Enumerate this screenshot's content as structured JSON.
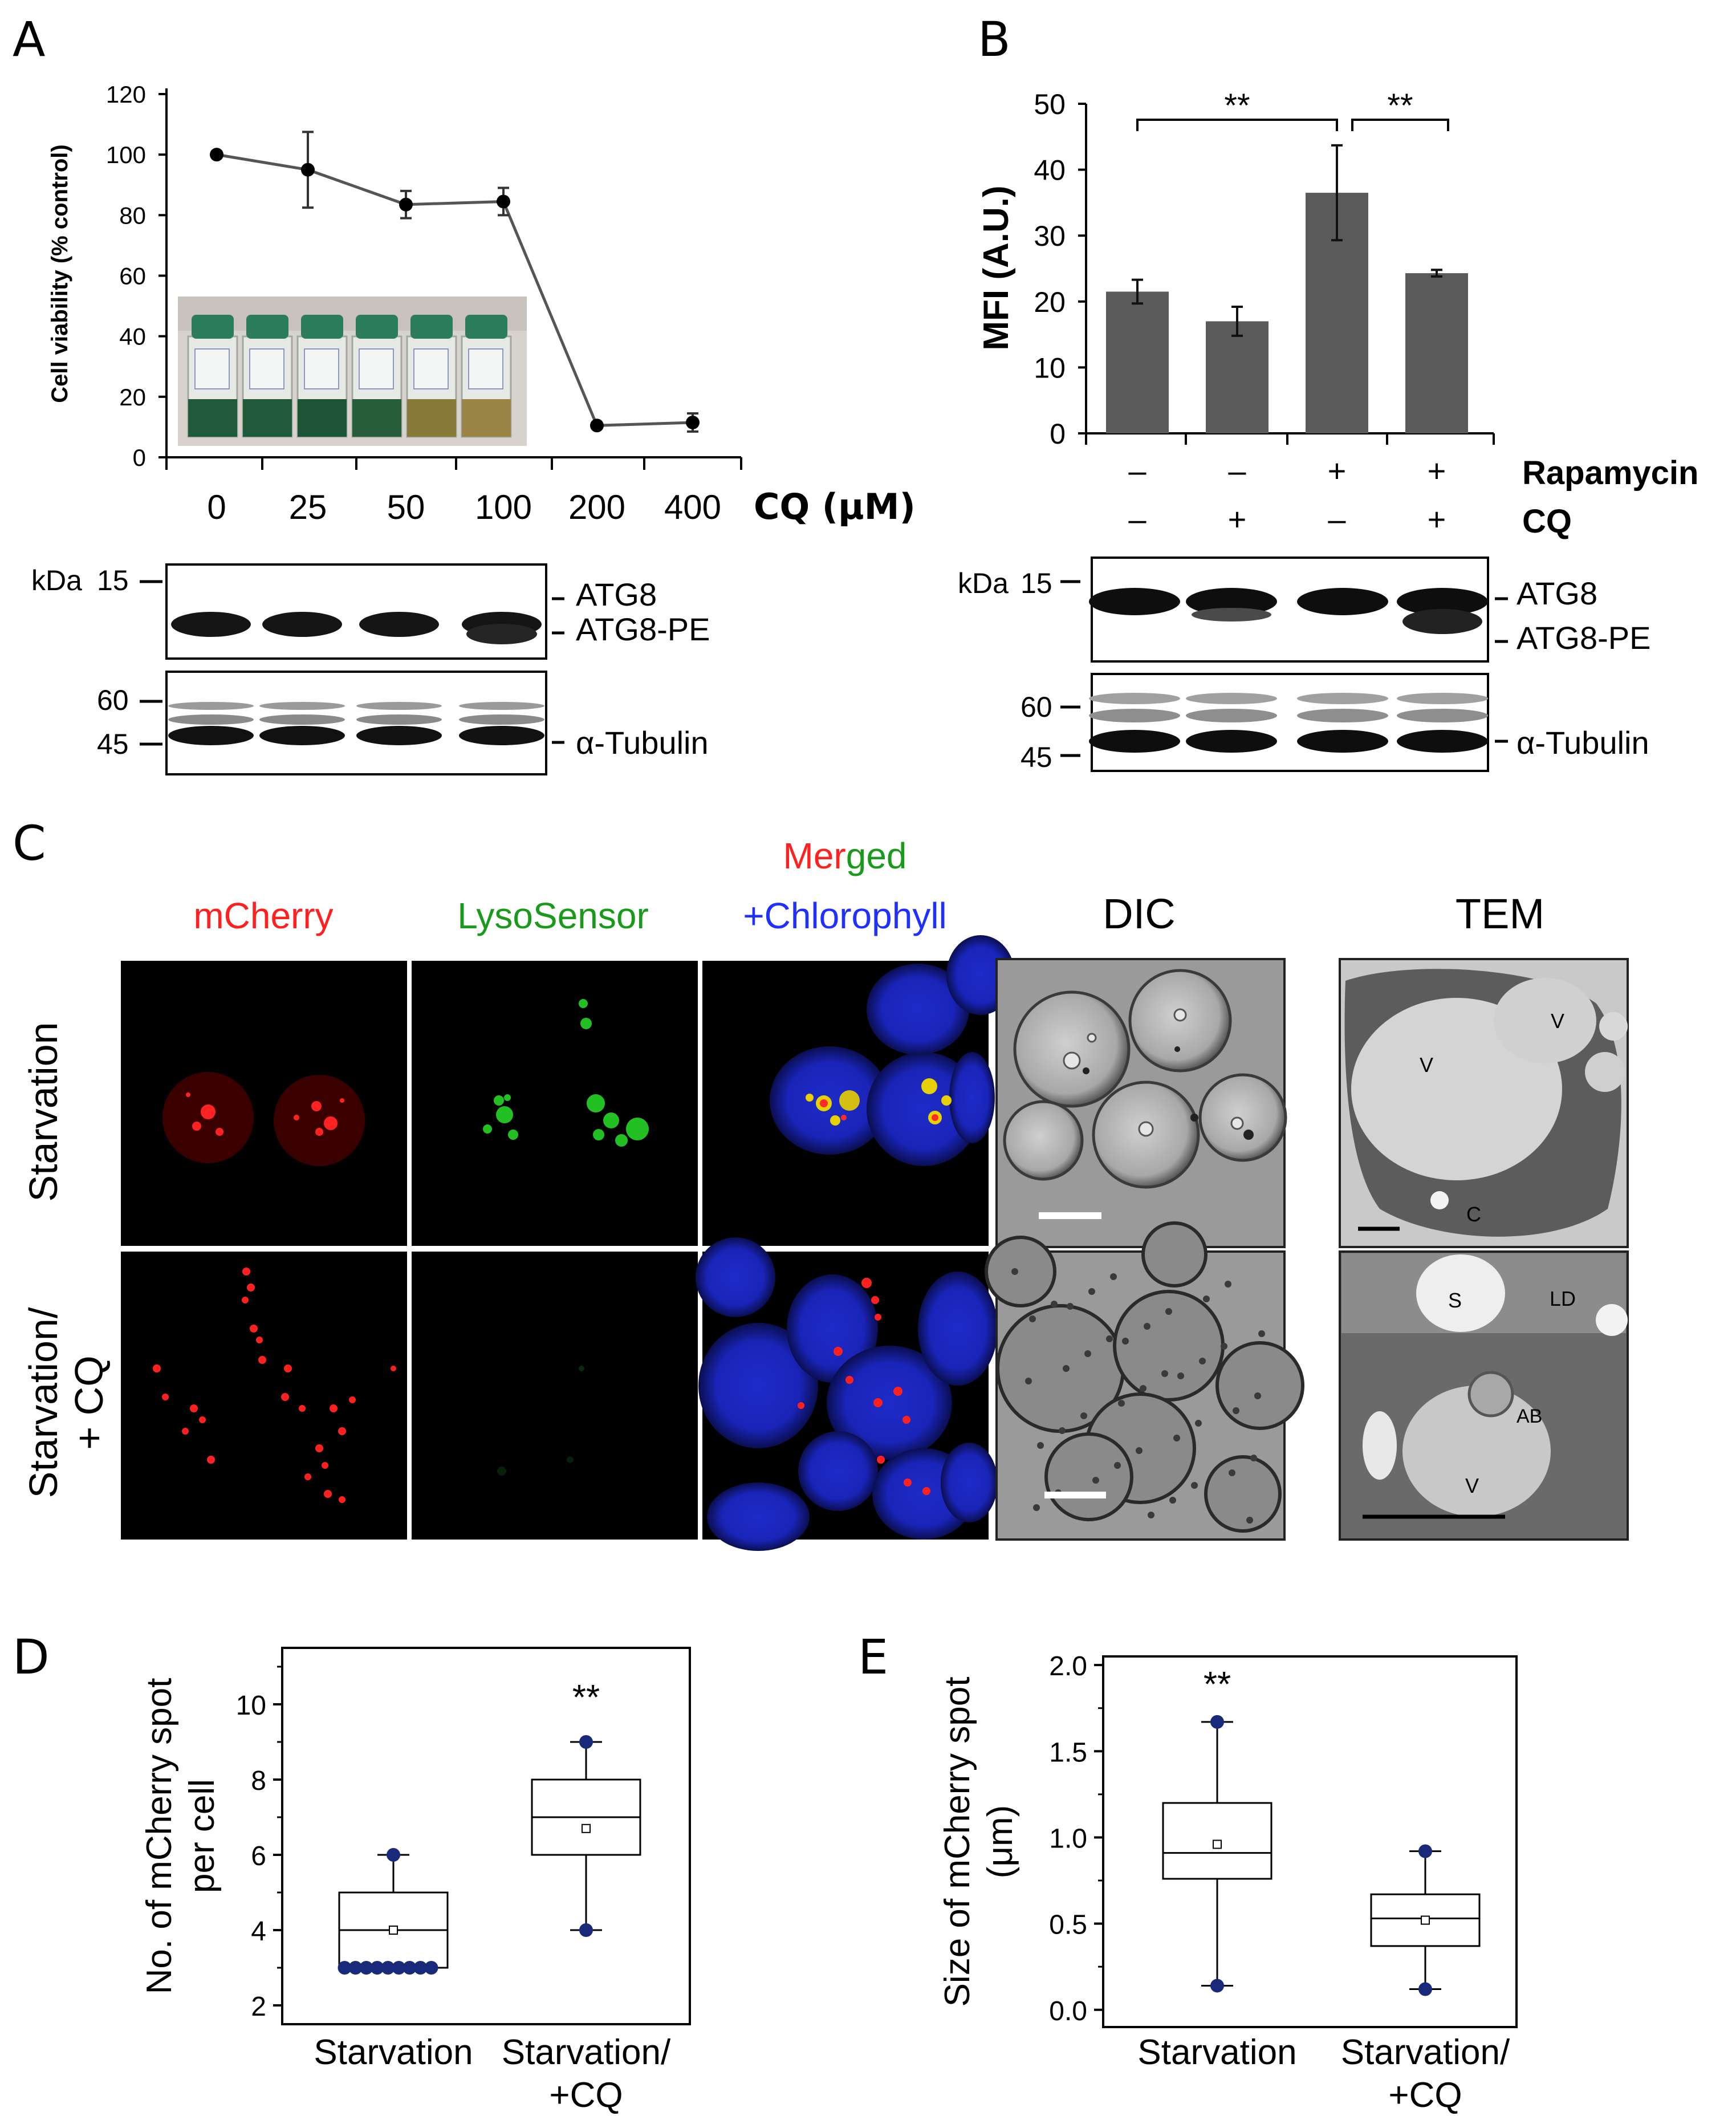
{
  "panels": {
    "A": {
      "letter": "A",
      "x_unit_label": "CQ (μM)",
      "blot_kda": "kDa",
      "blot_markers": [
        "15",
        "60",
        "45"
      ],
      "band_labels": [
        "ATG8",
        "ATG8-PE",
        "α-Tubulin"
      ]
    },
    "B": {
      "letter": "B",
      "significance": [
        "**",
        "**"
      ],
      "condition_rows": [
        {
          "name": "Rapamycin",
          "values": [
            "–",
            "–",
            "+",
            "+"
          ]
        },
        {
          "name": "CQ",
          "values": [
            "–",
            "+",
            "–",
            "+"
          ]
        }
      ],
      "blot_kda": "kDa",
      "blot_markers": [
        "15",
        "60",
        "45"
      ],
      "band_labels": [
        "ATG8",
        "ATG8-PE",
        "α-Tubulin"
      ]
    },
    "C": {
      "letter": "C",
      "col_mcherry": "mCherry",
      "col_lysosensor": "LysoSensor",
      "merged_red": "Mer",
      "merged_green": "ged",
      "merged_blue": "+Chlorophyll",
      "col_dic": "DIC",
      "col_tem": "TEM",
      "row1": "Starvation",
      "row2_line1": "Starvation/",
      "row2_line2": "+ CQ",
      "tem_top_labels": [
        "V",
        "V",
        "C"
      ],
      "tem_bottom_labels": [
        "LD",
        "S",
        "AB",
        "V"
      ]
    },
    "D": {
      "letter": "D",
      "significance": "**"
    },
    "E": {
      "letter": "E",
      "significance": "**"
    }
  },
  "colors": {
    "bar_fill": "#5a5a5a",
    "red_channel": "#ff2020",
    "green_channel": "#20c020",
    "blue_channel": "#2030ff",
    "box_marker": "#1a2a7a"
  },
  "chart_data": [
    {
      "panel": "A",
      "type": "line",
      "title": "",
      "xlabel": "CQ (μM)",
      "ylabel": "Cell viability (% control)",
      "categories": [
        "0",
        "25",
        "50",
        "100",
        "200",
        "400"
      ],
      "values": [
        100,
        95,
        83.5,
        84.5,
        10.5,
        11.5
      ],
      "errors": [
        0,
        12.5,
        4.5,
        4.5,
        0.5,
        3
      ],
      "ylim": [
        0,
        120
      ],
      "yticks": [
        "0",
        "20",
        "40",
        "60",
        "80",
        "100",
        "120"
      ]
    },
    {
      "panel": "B",
      "type": "bar",
      "title": "",
      "xlabel": "",
      "ylabel": "MFI (A.U.)",
      "categories": [
        "1",
        "2",
        "3",
        "4"
      ],
      "values": [
        21.5,
        17,
        36.5,
        24.3
      ],
      "errors": [
        1.8,
        2.2,
        7.2,
        0.5
      ],
      "ylim": [
        0,
        50
      ],
      "yticks": [
        "0",
        "10",
        "20",
        "30",
        "40",
        "50"
      ]
    },
    {
      "panel": "D",
      "type": "box",
      "title": "",
      "xlabel": "",
      "ylabel": "No. of mCherry spot per cell",
      "ylabel_lines": [
        "No. of mCherry spot",
        "per cell"
      ],
      "categories": [
        "Starvation",
        "Starvation/ +CQ"
      ],
      "category_lines": [
        [
          "Starvation"
        ],
        [
          "Starvation/",
          "+CQ"
        ]
      ],
      "boxes": [
        {
          "min": 3,
          "q1": 3,
          "median": 4,
          "q3": 5,
          "max": 6,
          "mean": 4.0,
          "outliers": [
            6,
            3,
            3,
            3,
            3,
            3,
            3,
            3,
            3,
            3
          ]
        },
        {
          "min": 4,
          "q1": 6,
          "median": 7,
          "q3": 8,
          "max": 9,
          "mean": 6.7,
          "outliers": [
            9,
            4
          ]
        }
      ],
      "ylim": [
        1.5,
        11.5
      ],
      "yticks": [
        "2",
        "4",
        "6",
        "8",
        "10"
      ]
    },
    {
      "panel": "E",
      "type": "box",
      "title": "",
      "xlabel": "",
      "ylabel": "Size of mCherry spot (μm)",
      "ylabel_lines": [
        "Size of mCherry spot",
        "(μm)"
      ],
      "categories": [
        "Starvation",
        "Starvation/ +CQ"
      ],
      "category_lines": [
        [
          "Starvation"
        ],
        [
          "Starvation/",
          "+CQ"
        ]
      ],
      "boxes": [
        {
          "min": 0.14,
          "q1": 0.76,
          "median": 0.91,
          "q3": 1.2,
          "max": 1.67,
          "mean": 0.96,
          "outliers": [
            1.67,
            0.14
          ]
        },
        {
          "min": 0.12,
          "q1": 0.37,
          "median": 0.53,
          "q3": 0.67,
          "max": 0.92,
          "mean": 0.52,
          "outliers": [
            0.92,
            0.12
          ]
        }
      ],
      "ylim": [
        -0.1,
        2.05
      ],
      "yticks": [
        "0.0",
        "0.5",
        "1.0",
        "1.5",
        "2.0"
      ]
    }
  ]
}
